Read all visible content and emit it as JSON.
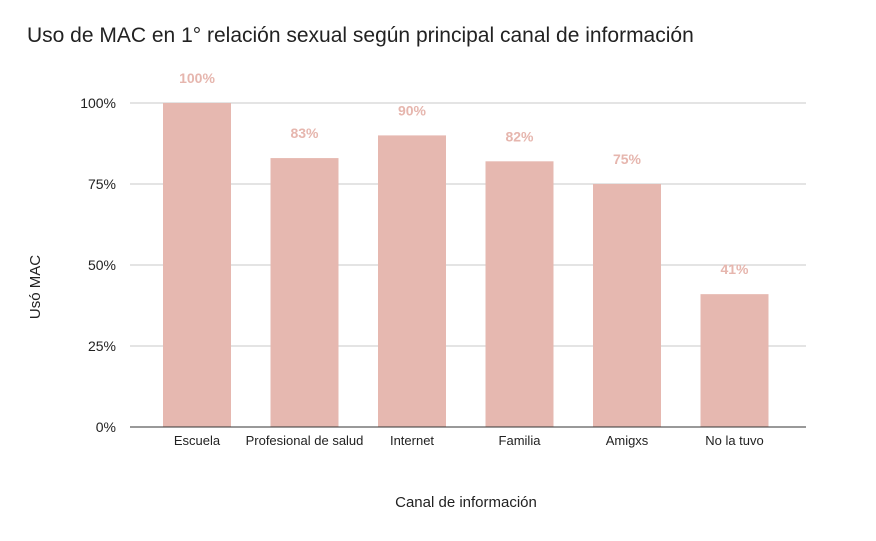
{
  "chart_data": {
    "type": "bar",
    "title": "Uso de MAC en 1° relación sexual según principal canal de información",
    "xlabel": "Canal de información",
    "ylabel": "Usó MAC",
    "categories": [
      "Escuela",
      "Profesional de salud",
      "Internet",
      "Familia",
      "Amigxs",
      "No la tuvo"
    ],
    "values": [
      100,
      83,
      90,
      82,
      75,
      41
    ],
    "data_labels": [
      "100%",
      "83%",
      "90%",
      "82%",
      "75%",
      "41%"
    ],
    "ylim": [
      0,
      100
    ],
    "y_ticks": [
      0,
      25,
      50,
      75,
      100
    ],
    "y_tick_labels": [
      "0%",
      "25%",
      "50%",
      "75%",
      "100%"
    ],
    "bar_color": "#e6b8b0",
    "label_color": "#e6b6ae",
    "grid": true,
    "legend": "none"
  }
}
